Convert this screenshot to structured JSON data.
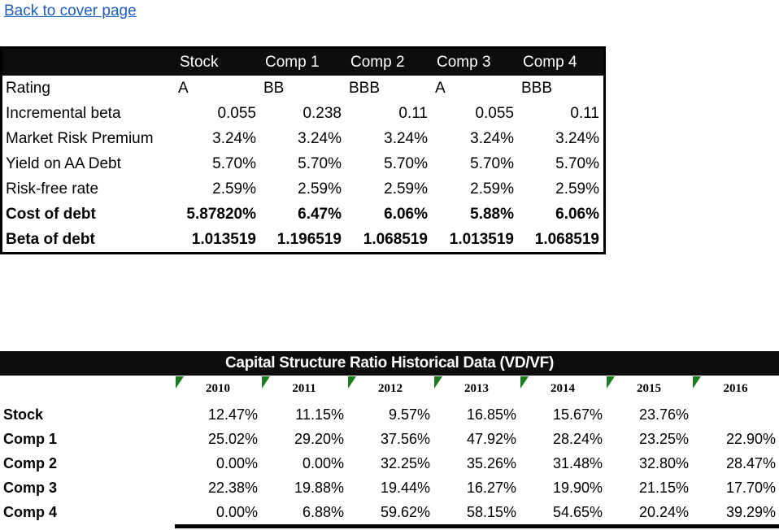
{
  "page": {
    "back_link": "Back to cover page"
  },
  "colors": {
    "table_header_bg": "#0d0d0d",
    "hyperlink_blue": "#1b5cc8",
    "comment_indicator_green": "#1e7a1e"
  },
  "cost_of_debt_table": {
    "columns": [
      "Stock",
      "Comp 1",
      "Comp 2",
      "Comp 3",
      "Comp 4"
    ],
    "rows": [
      {
        "label": "Rating",
        "values": [
          "A",
          "BB",
          "BBB",
          "A",
          "BBB"
        ]
      },
      {
        "label": "Incremental beta",
        "values": [
          "0.055",
          "0.238",
          "0.11",
          "0.055",
          "0.11"
        ]
      },
      {
        "label": "Market Risk Premium",
        "values": [
          "3.24%",
          "3.24%",
          "3.24%",
          "3.24%",
          "3.24%"
        ]
      },
      {
        "label": "Yield on AA Debt",
        "values": [
          "5.70%",
          "5.70%",
          "5.70%",
          "5.70%",
          "5.70%"
        ]
      },
      {
        "label": "Risk-free rate",
        "values": [
          "2.59%",
          "2.59%",
          "2.59%",
          "2.59%",
          "2.59%"
        ]
      },
      {
        "label": "Cost of debt",
        "values": [
          "5.87820%",
          "6.47%",
          "6.06%",
          "5.88%",
          "6.06%"
        ]
      },
      {
        "label": "Beta of debt",
        "values": [
          "1.013519",
          "1.196519",
          "1.068519",
          "1.013519",
          "1.068519"
        ]
      }
    ]
  },
  "capital_structure_table": {
    "title": "Capital Structure Ratio Historical Data (VD/VF)",
    "years": [
      "2010",
      "2011",
      "2012",
      "2013",
      "2014",
      "2015",
      "2016"
    ],
    "rows": [
      {
        "label": "Stock",
        "values": [
          "12.47%",
          "11.15%",
          "9.57%",
          "16.85%",
          "15.67%",
          "23.76%",
          ""
        ]
      },
      {
        "label": "Comp 1",
        "values": [
          "25.02%",
          "29.20%",
          "37.56%",
          "47.92%",
          "28.24%",
          "23.25%",
          "22.90%"
        ]
      },
      {
        "label": "Comp 2",
        "values": [
          "0.00%",
          "0.00%",
          "32.25%",
          "35.26%",
          "31.48%",
          "32.80%",
          "28.47%"
        ]
      },
      {
        "label": "Comp 3",
        "values": [
          "22.38%",
          "19.88%",
          "19.44%",
          "16.27%",
          "19.90%",
          "21.15%",
          "17.70%"
        ]
      },
      {
        "label": "Comp 4",
        "values": [
          "0.00%",
          "6.88%",
          "59.62%",
          "58.15%",
          "54.65%",
          "20.24%",
          "39.29%"
        ]
      }
    ]
  }
}
